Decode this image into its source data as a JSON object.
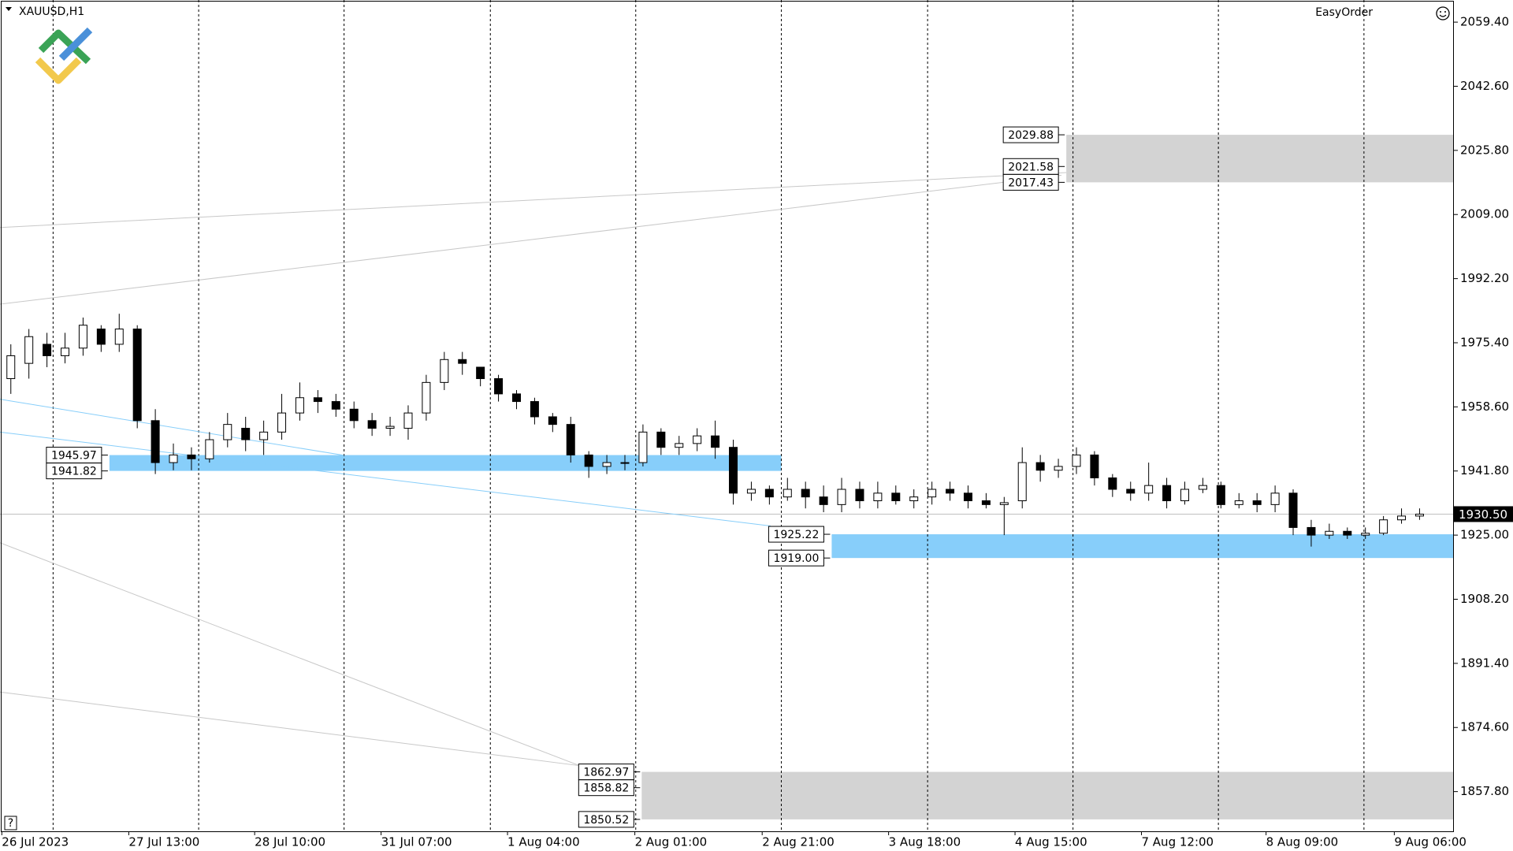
{
  "chart_data": {
    "type": "candlestick",
    "title": "XAUUSD,H1",
    "panel": "EasyOrder",
    "help": "?",
    "ylim": [
      1847.4,
      2065.2
    ],
    "yticks": [
      {
        "value": 2059.4,
        "label": "2059.40"
      },
      {
        "value": 2042.6,
        "label": "2042.60"
      },
      {
        "value": 2025.8,
        "label": "2025.80"
      },
      {
        "value": 2009,
        "label": "2009.00"
      },
      {
        "value": 1992.2,
        "label": "1992.20"
      },
      {
        "value": 1975.4,
        "label": "1975.40"
      },
      {
        "value": 1958.6,
        "label": "1958.60"
      },
      {
        "value": 1941.8,
        "label": "1941.80"
      },
      {
        "value": 1925,
        "label": "1925.00"
      },
      {
        "value": 1908.2,
        "label": "1908.20"
      },
      {
        "value": 1891.4,
        "label": "1891.40"
      },
      {
        "value": 1874.6,
        "label": "1874.60"
      },
      {
        "value": 1857.8,
        "label": "1857.80"
      }
    ],
    "xlim": [
      -0.6,
      79.9
    ],
    "xticks": [
      {
        "value": -0.5,
        "label": "26 Jul 2023"
      },
      {
        "value": 6.53,
        "label": "27 Jul 13:00"
      },
      {
        "value": 13.5,
        "label": "28 Jul 10:00"
      },
      {
        "value": 20.5,
        "label": "31 Jul 07:00"
      },
      {
        "value": 27.5,
        "label": "1 Aug 04:00"
      },
      {
        "value": 34.55,
        "label": "2 Aug 01:00"
      },
      {
        "value": 41.6,
        "label": "2 Aug 21:00"
      },
      {
        "value": 48.6,
        "label": "3 Aug 18:00"
      },
      {
        "value": 55.6,
        "label": "4 Aug 15:00"
      },
      {
        "value": 62.6,
        "label": "7 Aug 12:00"
      },
      {
        "value": 69.5,
        "label": "8 Aug 09:00"
      },
      {
        "value": 76.6,
        "label": "9 Aug 06:00"
      }
    ],
    "xgrid": [
      2.34,
      10.4,
      18.45,
      26.55,
      34.6,
      42.66,
      50.76,
      58.81,
      66.86,
      74.92
    ],
    "current_price": {
      "value": 1930.5,
      "label": "1930.50"
    },
    "candles": [
      [
        1966,
        1975,
        1962,
        1972
      ],
      [
        1970,
        1979,
        1966,
        1977
      ],
      [
        1975,
        1978,
        1969,
        1972
      ],
      [
        1972,
        1978,
        1970,
        1974
      ],
      [
        1974,
        1982,
        1972,
        1980
      ],
      [
        1979,
        1980,
        1973,
        1975
      ],
      [
        1975,
        1983,
        1973,
        1979
      ],
      [
        1979,
        1980,
        1953,
        1955
      ],
      [
        1955,
        1958,
        1941,
        1944
      ],
      [
        1944,
        1949,
        1942,
        1946
      ],
      [
        1946,
        1948,
        1942,
        1945
      ],
      [
        1945,
        1952,
        1944,
        1950
      ],
      [
        1950,
        1957,
        1948,
        1954
      ],
      [
        1953,
        1956,
        1947,
        1950
      ],
      [
        1950,
        1955,
        1946,
        1952
      ],
      [
        1952,
        1962,
        1950,
        1957
      ],
      [
        1957,
        1965,
        1955,
        1961
      ],
      [
        1961,
        1963,
        1957,
        1960
      ],
      [
        1960,
        1962,
        1956,
        1958
      ],
      [
        1958,
        1960,
        1953,
        1955
      ],
      [
        1955,
        1957,
        1951,
        1953
      ],
      [
        1953,
        1956,
        1951,
        1953.5
      ],
      [
        1953,
        1959,
        1950,
        1957
      ],
      [
        1957,
        1967,
        1955,
        1965
      ],
      [
        1965,
        1973,
        1963,
        1971
      ],
      [
        1971,
        1973,
        1967,
        1970
      ],
      [
        1969,
        1969,
        1964,
        1966
      ],
      [
        1966,
        1967,
        1960,
        1962
      ],
      [
        1962,
        1963,
        1958,
        1960
      ],
      [
        1960,
        1961,
        1954,
        1956
      ],
      [
        1956,
        1957,
        1952,
        1954
      ],
      [
        1954,
        1956,
        1944,
        1946
      ],
      [
        1946,
        1947,
        1940,
        1943
      ],
      [
        1943,
        1946,
        1941,
        1944
      ],
      [
        1944,
        1946,
        1942,
        1944
      ],
      [
        1944,
        1954,
        1943,
        1952
      ],
      [
        1952,
        1953,
        1946,
        1948
      ],
      [
        1948,
        1951,
        1946,
        1949
      ],
      [
        1949,
        1953,
        1947,
        1951
      ],
      [
        1951,
        1955,
        1945,
        1948
      ],
      [
        1948,
        1950,
        1933,
        1936
      ],
      [
        1936,
        1939,
        1934,
        1937
      ],
      [
        1937,
        1938,
        1933,
        1935
      ],
      [
        1935,
        1940,
        1934,
        1937
      ],
      [
        1937,
        1939,
        1932,
        1935
      ],
      [
        1935,
        1938,
        1931,
        1933
      ],
      [
        1933,
        1940,
        1931,
        1937
      ],
      [
        1937,
        1939,
        1932,
        1934
      ],
      [
        1934,
        1939,
        1932,
        1936
      ],
      [
        1936,
        1938,
        1933,
        1934
      ],
      [
        1934,
        1937,
        1932,
        1935
      ],
      [
        1935,
        1939,
        1933,
        1937
      ],
      [
        1937,
        1939,
        1934,
        1936
      ],
      [
        1936,
        1938,
        1932,
        1934
      ],
      [
        1934,
        1936,
        1932,
        1933
      ],
      [
        1933,
        1935,
        1925,
        1933.5
      ],
      [
        1934,
        1948,
        1932,
        1944
      ],
      [
        1944,
        1946,
        1939,
        1942
      ],
      [
        1942,
        1945,
        1940,
        1943
      ],
      [
        1943,
        1948,
        1941,
        1946
      ],
      [
        1946,
        1947,
        1938,
        1940
      ],
      [
        1940,
        1941,
        1935,
        1937
      ],
      [
        1937,
        1939,
        1934,
        1936
      ],
      [
        1936,
        1944,
        1934,
        1938
      ],
      [
        1938,
        1940,
        1932,
        1934
      ],
      [
        1934,
        1939,
        1933,
        1937
      ],
      [
        1937,
        1940,
        1936,
        1938
      ],
      [
        1938,
        1939,
        1932,
        1933
      ],
      [
        1933,
        1936,
        1932,
        1934
      ],
      [
        1934,
        1936,
        1931,
        1933
      ],
      [
        1933,
        1938,
        1931,
        1936
      ],
      [
        1936,
        1937,
        1925,
        1927
      ],
      [
        1927,
        1929,
        1922,
        1925
      ],
      [
        1925,
        1928,
        1924,
        1926
      ],
      [
        1926,
        1927,
        1924,
        1925
      ],
      [
        1925,
        1927,
        1924,
        1925.5
      ],
      [
        1925.5,
        1930,
        1925,
        1929
      ],
      [
        1929,
        1932,
        1928,
        1930
      ],
      [
        1930,
        1932,
        1929,
        1930.5
      ]
    ],
    "zones": [
      {
        "color": "#87cefa",
        "top": 1945.97,
        "bottom": 1941.82,
        "start": 5.46,
        "end": 42.66
      },
      {
        "color": "#87cefa",
        "top": 1925.22,
        "bottom": {
          "value": 1919,
          "label": "1919.00"
        },
        "start": 45.45,
        "end": 79.9
      },
      {
        "color": "#d3d3d3",
        "top": 2029.88,
        "mid": 2021.58,
        "bottom": 2017.43,
        "start": 58.44,
        "end": 79.9
      },
      {
        "color": "#d3d3d3",
        "top": 1862.97,
        "mid": 1858.82,
        "bottom": 1850.52,
        "start": 34.93,
        "end": 79.9
      }
    ],
    "trendlines": [
      {
        "color": "#c8c8c8",
        "points": [
          [
            -0.6,
            2005.6
          ],
          [
            58.44,
            2020.0
          ]
        ]
      },
      {
        "color": "#c8c8c8",
        "points": [
          [
            -0.6,
            1985.5
          ],
          [
            58.17,
            2019.3
          ]
        ]
      },
      {
        "color": "#c8c8c8",
        "points": [
          [
            -0.6,
            1923.0
          ],
          [
            31.49,
            1864.6
          ]
        ]
      },
      {
        "color": "#c8c8c8",
        "points": [
          [
            -0.6,
            1883.9
          ],
          [
            31.49,
            1864.6
          ]
        ]
      },
      {
        "color": "#87cefa",
        "points": [
          [
            -0.6,
            1960.6
          ],
          [
            18.45,
            1945.9
          ]
        ]
      },
      {
        "color": "#87cefa",
        "points": [
          [
            -0.6,
            1952.0
          ],
          [
            42.07,
            1927.4
          ]
        ]
      }
    ]
  }
}
